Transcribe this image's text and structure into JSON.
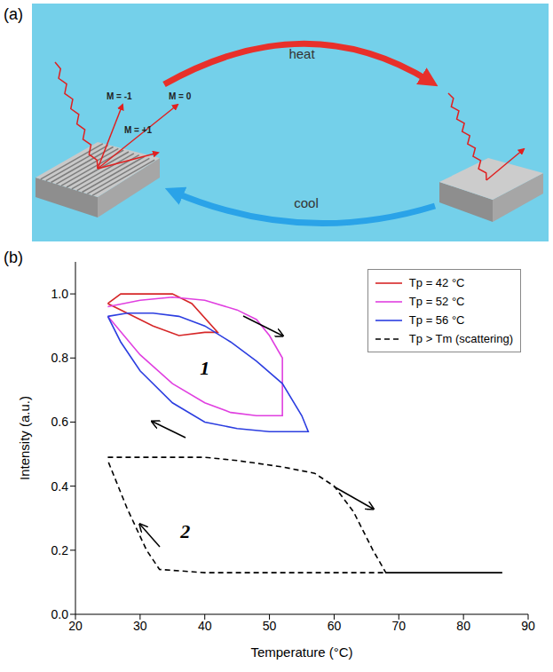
{
  "panel_labels": [
    "(a)",
    "(b)"
  ],
  "panel_a": {
    "orders": [
      "M = -1",
      "M = 0",
      "M = +1"
    ],
    "heat": "heat",
    "cool": "cool"
  },
  "chart_data": {
    "type": "line",
    "x_label": "Temperature (°C)",
    "y_label": "Intensity (a.u.)",
    "xlim": [
      20,
      90
    ],
    "xticks": [
      20,
      30,
      40,
      50,
      60,
      70,
      80,
      90
    ],
    "ylim": [
      0,
      1.1
    ],
    "yticks": [
      {
        "value": 0,
        "label": "0.0"
      },
      0.2,
      0.4,
      0.6,
      0.8,
      {
        "value": 1,
        "label": "1.0"
      }
    ],
    "grid": false,
    "legend": "upper right",
    "annotations": [
      {
        "text": "1",
        "x": 40,
        "y": 0.77
      },
      {
        "text": "2",
        "x": 37,
        "y": 0.26
      }
    ],
    "series": [
      {
        "name": "Tp = 42 °C",
        "color": "#d62728",
        "line_style": "solid",
        "x": [
          25,
          27,
          35,
          38,
          42,
          40,
          36,
          32,
          28,
          25
        ],
        "values": [
          0.97,
          1.0,
          1.0,
          0.97,
          0.88,
          0.88,
          0.87,
          0.9,
          0.94,
          0.97
        ]
      },
      {
        "name": "Tp = 52 °C",
        "color": "#e040e0",
        "line_style": "solid",
        "x": [
          25,
          30,
          35,
          40,
          45,
          48,
          50,
          52,
          52,
          48,
          44,
          40,
          35,
          30,
          25
        ],
        "values": [
          0.96,
          0.98,
          0.99,
          0.98,
          0.95,
          0.92,
          0.87,
          0.8,
          0.62,
          0.62,
          0.63,
          0.66,
          0.72,
          0.81,
          0.93
        ]
      },
      {
        "name": "Tp = 56 °C",
        "color": "#2c3ee0",
        "line_style": "solid",
        "x": [
          25,
          28,
          32,
          36,
          40,
          44,
          48,
          52,
          55,
          56,
          50,
          45,
          40,
          35,
          30,
          27,
          25
        ],
        "values": [
          0.93,
          0.94,
          0.94,
          0.93,
          0.9,
          0.85,
          0.79,
          0.72,
          0.62,
          0.57,
          0.57,
          0.58,
          0.6,
          0.66,
          0.76,
          0.85,
          0.93
        ]
      },
      {
        "name": "Tp > Tm (scattering)",
        "color": "#000000",
        "line_style": "dashed",
        "x": [
          25,
          30,
          40,
          45,
          52,
          57,
          60,
          63,
          66,
          68,
          75,
          86,
          70,
          50,
          40,
          33,
          31,
          28,
          25
        ],
        "values": [
          0.49,
          0.49,
          0.49,
          0.48,
          0.46,
          0.44,
          0.4,
          0.32,
          0.2,
          0.13,
          0.13,
          0.13,
          0.13,
          0.13,
          0.13,
          0.14,
          0.2,
          0.33,
          0.48
        ]
      }
    ]
  }
}
